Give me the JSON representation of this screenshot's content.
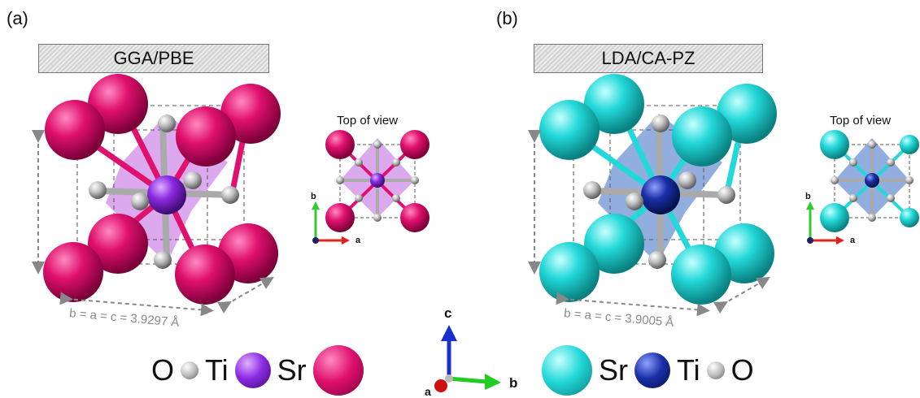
{
  "panels": [
    {
      "label": "(a)",
      "method": "GGA/PBE",
      "top_view_title": "Top of view",
      "lattice": "b = a = c = 3.9297 Å",
      "colors": {
        "sr": "#e0106e",
        "ti": "#8a2be2",
        "o": "#c8c8c8",
        "octahedron": "#c060e0"
      }
    },
    {
      "label": "(b)",
      "method": "LDA/CA-PZ",
      "top_view_title": "Top of view",
      "lattice": "b = a = c = 3.9005 Å",
      "colors": {
        "sr": "#22d8d8",
        "ti": "#1a2fa8",
        "o": "#c8c8c8",
        "octahedron": "#4a78c8"
      }
    }
  ],
  "legend_left": [
    "O",
    "Ti",
    "Sr"
  ],
  "legend_right": [
    "Sr",
    "Ti",
    "O"
  ],
  "axes": {
    "a": "a",
    "b": "b",
    "c": "c"
  },
  "top_axes": {
    "a": "a",
    "b": "b"
  }
}
